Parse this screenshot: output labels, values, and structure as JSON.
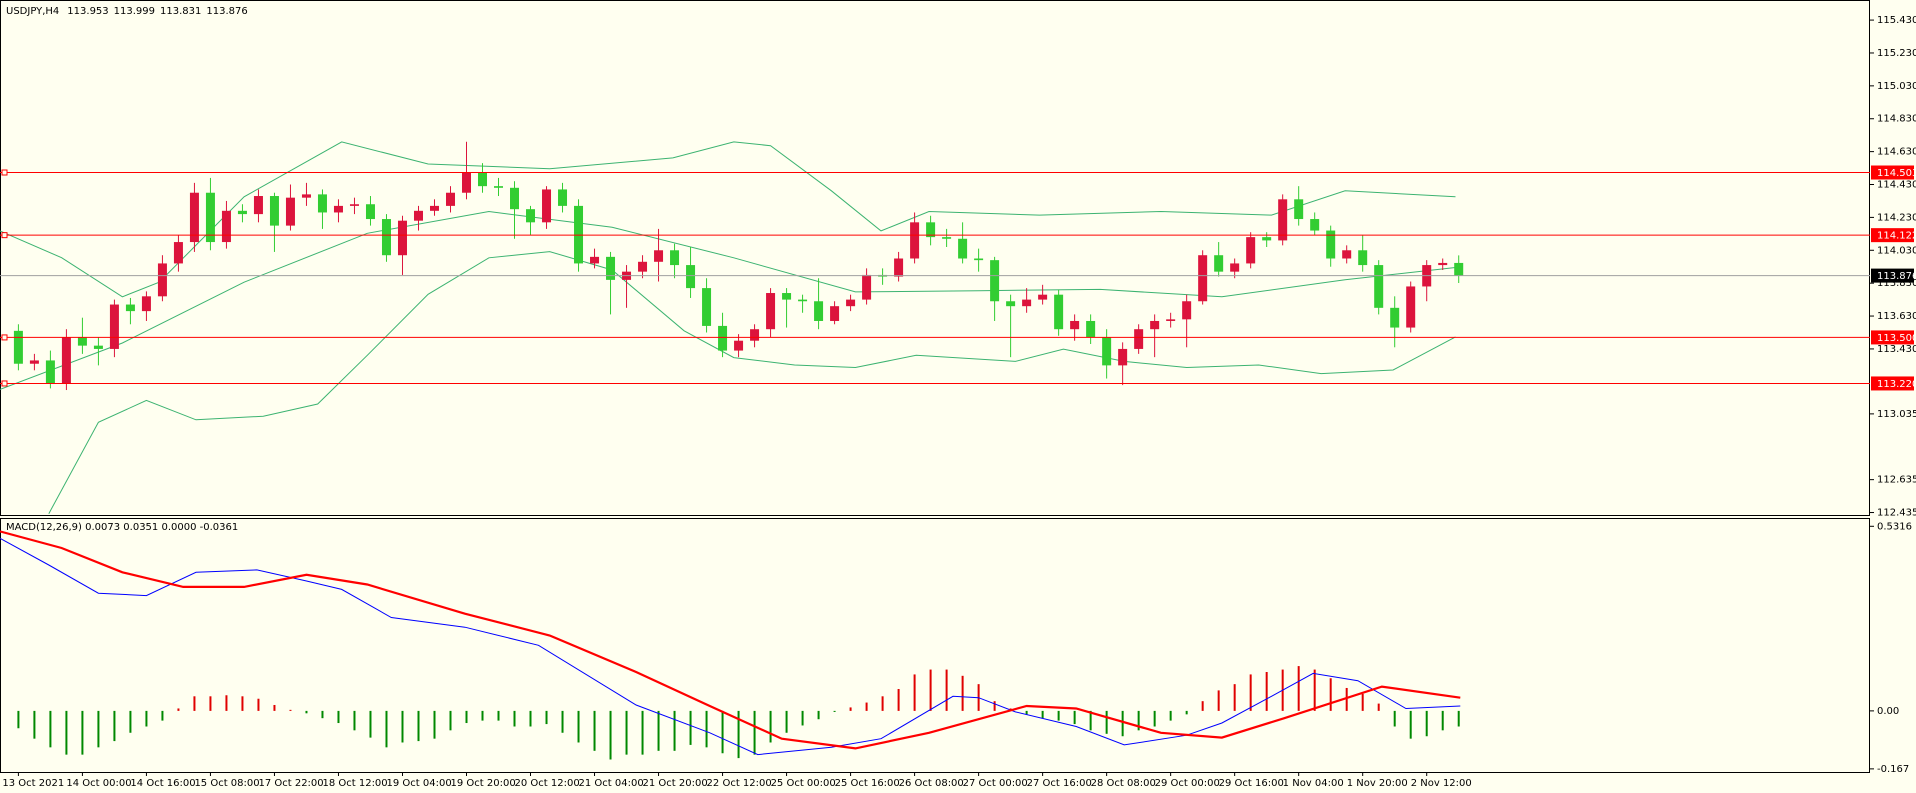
{
  "chart_data": [
    {
      "type": "candlestick",
      "title": "USDJPY,H4",
      "categories": [
        "13 Oct 2021",
        null,
        null,
        null,
        "14 Oct 00:00",
        null,
        null,
        null,
        "14 Oct 16:00",
        null,
        null,
        null,
        "15 Oct 08:00",
        null,
        null,
        null,
        "17 Oct 22:00",
        null,
        null,
        null,
        "18 Oct 12:00",
        null,
        null,
        null,
        "19 Oct 04:00",
        null,
        null,
        null,
        "19 Oct 20:00",
        null,
        null,
        null,
        "20 Oct 12:00",
        null,
        null,
        null,
        "21 Oct 04:00",
        null,
        null,
        null,
        "21 Oct 20:00",
        null,
        null,
        null,
        "22 Oct 12:00",
        null,
        null,
        null,
        "25 Oct 00:00",
        null,
        null,
        null,
        "25 Oct 16:00",
        null,
        null,
        null,
        "26 Oct 08:00",
        null,
        null,
        null,
        "27 Oct 00:00",
        null,
        null,
        null,
        "27 Oct 16:00",
        null,
        null,
        null,
        "28 Oct 08:00",
        null,
        null,
        null,
        "29 Oct 00:00",
        null,
        null,
        null,
        "29 Oct 16:00",
        null,
        null,
        null,
        "1 Nov 04:00",
        null,
        null,
        null,
        "1 Nov 20:00",
        null,
        null,
        null,
        "2 Nov 12:00",
        null,
        null
      ],
      "open": [
        113.54,
        113.34,
        113.36,
        113.22,
        113.5,
        113.45,
        113.43,
        113.7,
        113.66,
        113.75,
        113.95,
        114.08,
        114.38,
        114.08,
        114.27,
        114.25,
        114.36,
        114.18,
        114.35,
        114.37,
        114.26,
        114.3,
        114.31,
        114.22,
        114.0,
        114.21,
        114.27,
        114.3,
        114.38,
        114.5,
        114.42,
        114.41,
        114.28,
        114.2,
        114.4,
        114.3,
        113.95,
        113.99,
        113.85,
        113.9,
        113.96,
        114.03,
        113.94,
        113.8,
        113.57,
        113.42,
        113.48,
        113.55,
        113.77,
        113.73,
        113.72,
        113.6,
        113.69,
        113.73,
        113.88,
        113.87,
        113.98,
        114.2,
        114.11,
        114.1,
        113.98,
        113.97,
        113.72,
        113.69,
        113.73,
        113.76,
        113.55,
        113.6,
        113.5,
        113.33,
        113.43,
        113.55,
        113.6,
        113.61,
        113.72,
        114.0,
        113.9,
        113.95,
        114.11,
        114.09,
        114.34,
        114.22,
        114.15,
        113.98,
        114.03,
        113.94,
        113.68,
        113.56,
        113.81,
        113.94,
        113.953
      ],
      "high": [
        113.58,
        113.4,
        113.42,
        113.55,
        113.62,
        113.5,
        113.73,
        113.74,
        113.78,
        114.0,
        114.12,
        114.44,
        114.47,
        114.33,
        114.31,
        114.4,
        114.38,
        114.43,
        114.44,
        114.4,
        114.34,
        114.35,
        114.36,
        114.25,
        114.24,
        114.3,
        114.34,
        114.42,
        114.69,
        114.56,
        114.47,
        114.45,
        114.3,
        114.42,
        114.44,
        114.34,
        114.04,
        114.02,
        113.94,
        114.0,
        114.16,
        114.07,
        114.05,
        113.86,
        113.65,
        113.52,
        113.58,
        113.8,
        113.8,
        113.76,
        113.86,
        113.72,
        113.76,
        113.92,
        113.92,
        114.02,
        114.26,
        114.24,
        114.16,
        114.2,
        114.04,
        113.99,
        113.76,
        113.8,
        113.82,
        113.79,
        113.64,
        113.64,
        113.55,
        113.47,
        113.58,
        113.64,
        113.65,
        113.76,
        114.03,
        114.08,
        113.98,
        114.14,
        114.14,
        114.37,
        114.42,
        114.26,
        114.18,
        114.06,
        114.12,
        113.97,
        113.75,
        113.84,
        113.97,
        113.98,
        113.999
      ],
      "low": [
        113.3,
        113.3,
        113.19,
        113.18,
        113.4,
        113.33,
        113.38,
        113.58,
        113.6,
        113.72,
        113.9,
        114.02,
        114.03,
        114.04,
        114.2,
        114.2,
        114.02,
        114.15,
        114.3,
        114.16,
        114.2,
        114.25,
        114.18,
        113.96,
        113.88,
        114.15,
        114.24,
        114.26,
        114.34,
        114.38,
        114.36,
        114.1,
        114.12,
        114.16,
        114.26,
        113.9,
        113.92,
        113.64,
        113.68,
        113.86,
        113.84,
        113.86,
        113.74,
        113.53,
        113.38,
        113.38,
        113.44,
        113.5,
        113.56,
        113.65,
        113.55,
        113.58,
        113.66,
        113.7,
        113.82,
        113.84,
        113.95,
        114.06,
        114.05,
        113.95,
        113.9,
        113.6,
        113.38,
        113.65,
        113.7,
        113.51,
        113.48,
        113.46,
        113.25,
        113.21,
        113.4,
        113.38,
        113.56,
        113.44,
        113.7,
        113.87,
        113.86,
        113.92,
        114.05,
        114.06,
        114.18,
        114.12,
        113.93,
        113.95,
        113.9,
        113.64,
        113.44,
        113.53,
        113.72,
        113.91,
        113.831
      ],
      "close": [
        113.34,
        113.36,
        113.22,
        113.5,
        113.45,
        113.43,
        113.7,
        113.66,
        113.75,
        113.95,
        114.08,
        114.38,
        114.08,
        114.27,
        114.25,
        114.36,
        114.18,
        114.35,
        114.37,
        114.26,
        114.3,
        114.31,
        114.22,
        114.0,
        114.21,
        114.27,
        114.3,
        114.38,
        114.5,
        114.42,
        114.41,
        114.28,
        114.2,
        114.4,
        114.3,
        113.95,
        113.99,
        113.85,
        113.9,
        113.96,
        114.03,
        113.94,
        113.8,
        113.57,
        113.42,
        113.48,
        113.55,
        113.77,
        113.73,
        113.72,
        113.6,
        113.69,
        113.73,
        113.88,
        113.87,
        113.98,
        114.2,
        114.11,
        114.1,
        113.98,
        113.97,
        113.72,
        113.69,
        113.73,
        113.76,
        113.55,
        113.6,
        113.5,
        113.33,
        113.43,
        113.55,
        113.6,
        113.61,
        113.72,
        114.0,
        113.9,
        113.95,
        114.11,
        114.09,
        114.34,
        114.22,
        114.15,
        113.98,
        114.03,
        113.94,
        113.68,
        113.56,
        113.81,
        113.94,
        113.953,
        113.876
      ],
      "bull_color": "#dc143c",
      "bear_color": "#32cd32",
      "bands": {
        "color": "#3cb371",
        "upper": {
          "x": [
            -1.15,
            2.7,
            6.5,
            8.8,
            14.1,
            20.2,
            25.6,
            33.2,
            40.9,
            44.7,
            47.0,
            50.8,
            53.9,
            56.9,
            63.8,
            71.4,
            78.3,
            82.9,
            89.8
          ],
          "values": [
            114.148,
            113.985,
            113.747,
            113.836,
            114.355,
            114.689,
            114.555,
            114.526,
            114.592,
            114.689,
            114.666,
            114.392,
            114.148,
            114.266,
            114.244,
            114.266,
            114.244,
            114.392,
            114.355
          ]
        },
        "middle": {
          "x": [
            -1.15,
            6.5,
            14.1,
            21.8,
            29.4,
            37.1,
            44.7,
            52.3,
            60.0,
            67.6,
            75.2,
            82.9,
            89.8
          ],
          "values": [
            113.184,
            113.466,
            113.836,
            114.133,
            114.266,
            114.17,
            113.984,
            113.777,
            113.784,
            113.792,
            113.747,
            113.851,
            113.925
          ]
        },
        "lower": {
          "x": [
            1.9,
            5.0,
            8.0,
            11.1,
            15.3,
            18.7,
            21.8,
            25.6,
            29.4,
            33.2,
            37.1,
            41.6,
            44.7,
            48.5,
            52.3,
            56.1,
            62.3,
            65.3,
            69.1,
            73.0,
            77.5,
            81.4,
            85.9,
            89.8
          ],
          "values": [
            112.428,
            112.984,
            113.117,
            112.999,
            113.021,
            113.095,
            113.391,
            113.762,
            113.984,
            114.022,
            113.91,
            113.54,
            113.377,
            113.332,
            113.317,
            113.391,
            113.354,
            113.429,
            113.354,
            113.317,
            113.332,
            113.28,
            113.302,
            113.503
          ]
        }
      },
      "hlines": {
        "color": "#ff0000",
        "levels": [
          114.503,
          114.122,
          {
            "value": 113.5,
            "label": "113.500"
          },
          {
            "value": 113.22,
            "label": "113.220"
          }
        ]
      },
      "bid_color": "#a0a0a0",
      "xlim": [
        -1.15,
        115.7
      ],
      "ylim": [
        112.42,
        115.54
      ],
      "yticks": [
        {
          "value": 115.43,
          "label": "115.430"
        },
        {
          "value": 115.23,
          "label": "115.230"
        },
        {
          "value": 115.03,
          "label": "115.030"
        },
        {
          "value": 114.83,
          "label": "114.830"
        },
        {
          "value": 114.63,
          "label": "114.630"
        },
        {
          "value": 114.43,
          "label": "114.430"
        },
        {
          "value": 114.23,
          "label": "114.230"
        },
        {
          "value": 114.03,
          "label": "114.030"
        },
        {
          "value": 113.83,
          "label": "113.830"
        },
        {
          "value": 113.63,
          "label": "113.630"
        },
        {
          "value": 113.43,
          "label": "113.430"
        },
        113.035,
        112.635,
        112.435
      ]
    },
    {
      "type": "macd",
      "title": "MACD(12,26,9) 0.0073 0.0351 0.0000 -0.0361",
      "macd": {
        "color": "#0000ff",
        "x": [
          -1.15,
          1.9,
          5.0,
          8.0,
          11.1,
          14.9,
          18.0,
          20.2,
          23.3,
          27.9,
          32.5,
          38.6,
          43.2,
          46.2,
          50.8,
          53.9,
          58.4,
          60.0,
          62.3,
          66.1,
          69.1,
          73.0,
          75.2,
          78.3,
          80.9,
          83.7,
          86.7,
          90.1
        ],
        "values": [
          0.497,
          0.42,
          0.339,
          0.332,
          0.399,
          0.406,
          0.374,
          0.35,
          0.269,
          0.241,
          0.189,
          0.017,
          -0.063,
          -0.126,
          -0.105,
          -0.08,
          0.042,
          0.038,
          -0.003,
          -0.045,
          -0.098,
          -0.07,
          -0.035,
          0.042,
          0.108,
          0.087,
          0.007,
          0.014
        ]
      },
      "signal": {
        "color": "#ff0000",
        "x": [
          -1.15,
          2.7,
          6.5,
          10.3,
          14.1,
          18.0,
          21.8,
          27.9,
          33.2,
          38.6,
          43.2,
          47.7,
          52.3,
          56.9,
          63.0,
          66.1,
          71.4,
          75.2,
          79.1,
          85.2,
          90.1
        ],
        "values": [
          0.517,
          0.469,
          0.399,
          0.357,
          0.357,
          0.392,
          0.364,
          0.28,
          0.217,
          0.112,
          0.014,
          -0.08,
          -0.108,
          -0.063,
          0.014,
          0.007,
          -0.063,
          -0.077,
          -0.021,
          0.07,
          0.038
        ]
      },
      "histogram": [
        -0.05,
        -0.08,
        -0.105,
        -0.126,
        -0.126,
        -0.105,
        -0.087,
        -0.063,
        -0.045,
        -0.028,
        0.007,
        0.042,
        0.042,
        0.045,
        0.042,
        0.035,
        0.017,
        0.003,
        -0.007,
        -0.021,
        -0.035,
        -0.056,
        -0.077,
        -0.105,
        -0.091,
        -0.087,
        -0.08,
        -0.056,
        -0.035,
        -0.028,
        -0.028,
        -0.045,
        -0.045,
        -0.038,
        -0.063,
        -0.091,
        -0.115,
        -0.14,
        -0.126,
        -0.126,
        -0.115,
        -0.115,
        -0.098,
        -0.105,
        -0.122,
        -0.136,
        -0.126,
        -0.091,
        -0.063,
        -0.042,
        -0.024,
        -0.003,
        0.01,
        0.024,
        0.042,
        0.063,
        0.105,
        0.119,
        0.119,
        0.101,
        0.077,
        0.028,
        0.007,
        -0.01,
        -0.021,
        -0.028,
        -0.038,
        -0.056,
        -0.066,
        -0.073,
        -0.056,
        -0.045,
        -0.028,
        -0.01,
        0.028,
        0.059,
        0.077,
        0.105,
        0.112,
        0.119,
        0.129,
        0.119,
        0.094,
        0.066,
        0.049,
        0.021,
        -0.045,
        -0.08,
        -0.073,
        -0.056,
        -0.045
      ],
      "hist_positive": "#e00000",
      "hist_negative": "#008800",
      "ylim": [
        -0.176,
        0.5526
      ],
      "yticks": [
        0.5316,
        {
          "value": 0,
          "label": "0.00"
        },
        -0.167
      ]
    }
  ]
}
